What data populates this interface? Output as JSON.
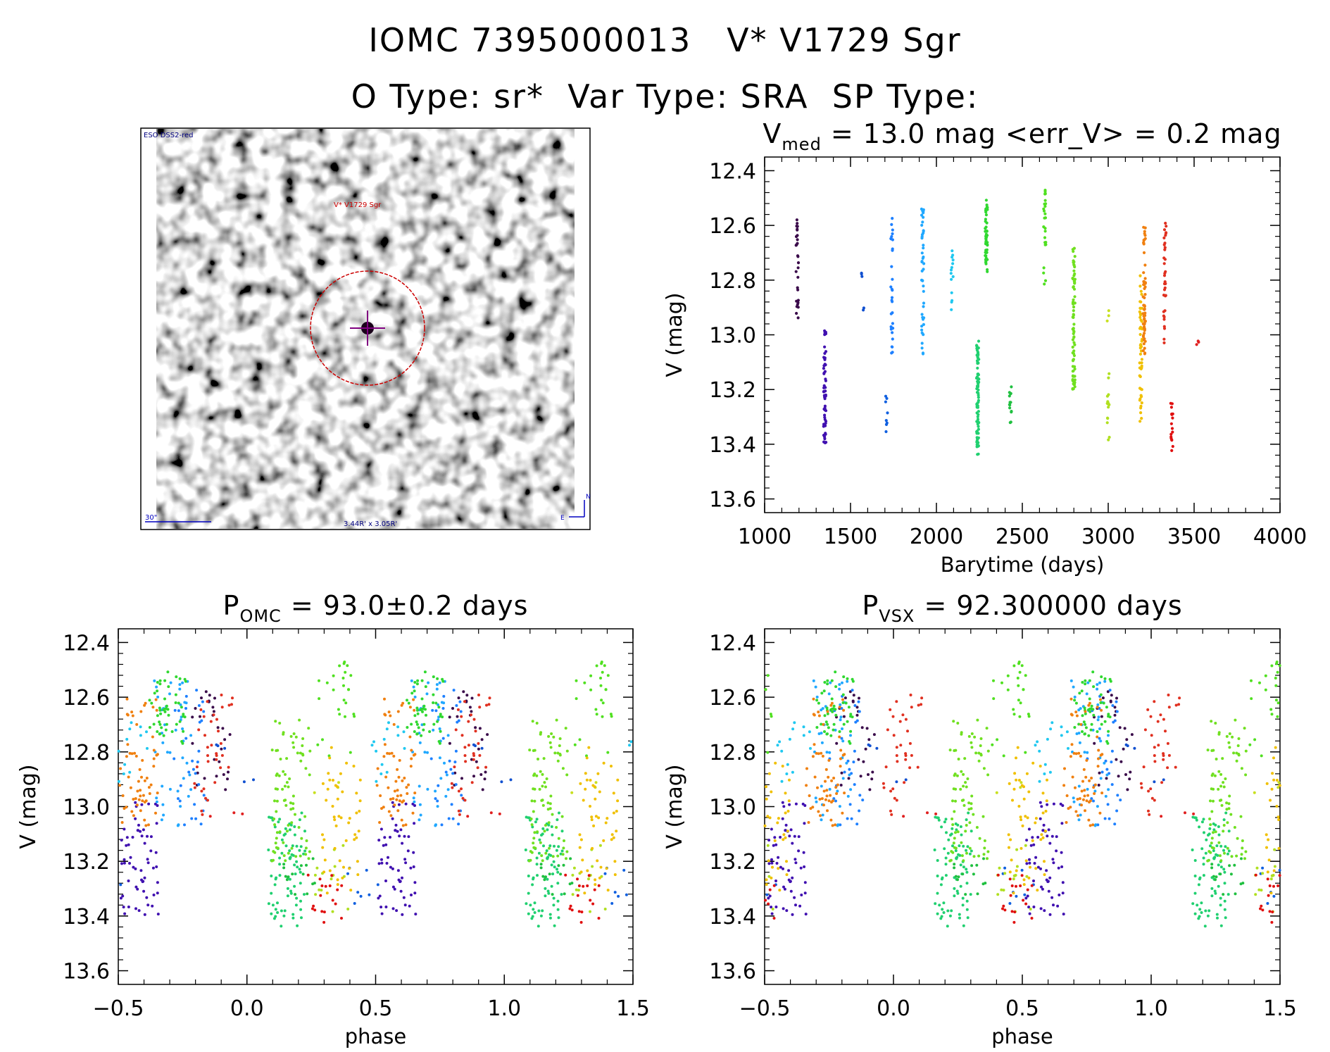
{
  "header": {
    "title_line1": "IOMC 7395000013   V* V1729 Sgr",
    "title_line2": "O Type: sr*  Var Type: SRA  SP Type:"
  },
  "finder_chart": {
    "survey_label": "ESO DSS2-red",
    "target_label": "V* V1729 Sgr",
    "scale_label": "30\"",
    "fov_label": "3.44R' x 3.05R'",
    "compass_n": "N",
    "compass_e": "E",
    "circle_color": "#cc0000",
    "cross_color": "#800080"
  },
  "chart_data": [
    {
      "id": "lightcurve",
      "type": "scatter",
      "title_main": "V",
      "title_sub": "med",
      "title_rest": " = 13.0 mag <err_V> = 0.2 mag",
      "xlabel": "Barytime (days)",
      "ylabel": "V (mag)",
      "xlim": [
        1000,
        4000
      ],
      "ylim": [
        13.65,
        12.35
      ],
      "xticks": [
        "1000",
        "1500",
        "2000",
        "2500",
        "3000",
        "3500",
        "4000"
      ],
      "yticks": [
        "12.4",
        "12.6",
        "12.8",
        "13.0",
        "13.2",
        "13.4",
        "13.6"
      ],
      "groups": [
        {
          "t": 1190,
          "lo": 12.57,
          "hi": 12.94,
          "n": 28,
          "color": "#3a0a4a"
        },
        {
          "t": 1350,
          "lo": 12.98,
          "hi": 13.4,
          "n": 60,
          "color": "#4010b0"
        },
        {
          "t": 1570,
          "lo": 12.77,
          "hi": 12.8,
          "n": 3,
          "color": "#1050d0"
        },
        {
          "t": 1575,
          "lo": 12.89,
          "hi": 12.91,
          "n": 2,
          "color": "#1050d0"
        },
        {
          "t": 1710,
          "lo": 13.18,
          "hi": 13.37,
          "n": 8,
          "color": "#1060e0"
        },
        {
          "t": 1740,
          "lo": 12.57,
          "hi": 13.08,
          "n": 30,
          "color": "#1e80ff"
        },
        {
          "t": 1920,
          "lo": 12.52,
          "hi": 13.07,
          "n": 45,
          "color": "#20a8ff"
        },
        {
          "t": 2090,
          "lo": 12.63,
          "hi": 12.91,
          "n": 14,
          "color": "#20c8f0"
        },
        {
          "t": 2240,
          "lo": 13.02,
          "hi": 13.44,
          "n": 80,
          "color": "#20d070"
        },
        {
          "t": 2290,
          "lo": 12.5,
          "hi": 12.77,
          "n": 50,
          "color": "#30d830"
        },
        {
          "t": 2430,
          "lo": 13.16,
          "hi": 13.33,
          "n": 14,
          "color": "#20c040"
        },
        {
          "t": 2630,
          "lo": 12.47,
          "hi": 12.83,
          "n": 26,
          "color": "#50e020"
        },
        {
          "t": 2800,
          "lo": 12.67,
          "hi": 13.2,
          "n": 80,
          "color": "#70e020"
        },
        {
          "t": 3000,
          "lo": 12.91,
          "hi": 12.96,
          "n": 3,
          "color": "#c8e020"
        },
        {
          "t": 3000,
          "lo": 13.14,
          "hi": 13.41,
          "n": 16,
          "color": "#b0e020"
        },
        {
          "t": 3190,
          "lo": 12.78,
          "hi": 13.32,
          "n": 50,
          "color": "#f0c000"
        },
        {
          "t": 3210,
          "lo": 12.6,
          "hi": 13.07,
          "n": 60,
          "color": "#f08010"
        },
        {
          "t": 3330,
          "lo": 12.59,
          "hi": 13.03,
          "n": 35,
          "color": "#e03020"
        },
        {
          "t": 3370,
          "lo": 13.24,
          "hi": 13.43,
          "n": 18,
          "color": "#e01010"
        },
        {
          "t": 3520,
          "lo": 13.02,
          "hi": 13.04,
          "n": 3,
          "color": "#e02020"
        }
      ]
    },
    {
      "id": "phase_omc",
      "type": "scatter",
      "title_main": "P",
      "title_sub": "OMC",
      "title_rest": " = 93.0±0.2 days",
      "period_days": 93.0,
      "xlabel": "phase",
      "ylabel": "V (mag)",
      "xlim": [
        -0.5,
        1.5
      ],
      "ylim": [
        13.65,
        12.35
      ],
      "xticks": [
        "−0.5",
        "0.0",
        "0.5",
        "1.0",
        "1.5"
      ],
      "yticks": [
        "12.4",
        "12.6",
        "12.8",
        "13.0",
        "13.2",
        "13.4",
        "13.6"
      ]
    },
    {
      "id": "phase_vsx",
      "type": "scatter",
      "title_main": "P",
      "title_sub": "VSX",
      "title_rest": " = 92.300000 days",
      "period_days": 92.3,
      "xlabel": "phase",
      "ylabel": "V (mag)",
      "xlim": [
        -0.5,
        1.5
      ],
      "ylim": [
        13.65,
        12.35
      ],
      "xticks": [
        "−0.5",
        "0.0",
        "0.5",
        "1.0",
        "1.5"
      ],
      "yticks": [
        "12.4",
        "12.6",
        "12.8",
        "13.0",
        "13.2",
        "13.4",
        "13.6"
      ]
    }
  ]
}
